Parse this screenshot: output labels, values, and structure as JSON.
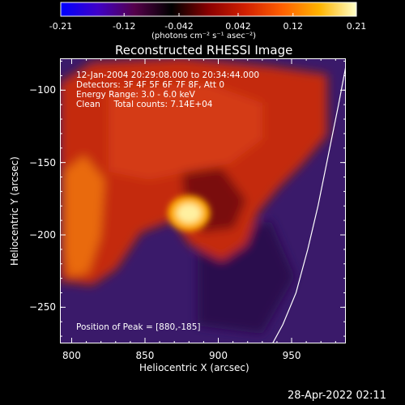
{
  "colorbar": {
    "ticks": [
      "-0.21",
      "-0.12",
      "-0.042",
      "0.042",
      "0.12",
      "0.21"
    ],
    "tick_values": [
      -0.21,
      -0.12,
      -0.042,
      0.042,
      0.12,
      0.21
    ],
    "unit_text": "(photons cm⁻² s⁻¹ asec⁻²)",
    "colors": [
      "#0000ff",
      "#4000c8",
      "#55004a",
      "#000000",
      "#8a0000",
      "#d22000",
      "#ff6000",
      "#ffb400",
      "#ffffc8"
    ]
  },
  "chart_data": {
    "type": "heatmap",
    "title": "Reconstructed RHESSI Image",
    "xlabel": "Heliocentric X (arcsec)",
    "ylabel": "Heliocentric Y (arcsec)",
    "xlim": [
      792,
      987
    ],
    "ylim": [
      -275,
      -78
    ],
    "xticks": [
      800,
      850,
      900,
      950
    ],
    "yticks": [
      -100,
      -150,
      -200,
      -250
    ],
    "info_lines": [
      "12-Jan-2004 20:29:08.000 to 20:34:44.000",
      "Detectors: 3F 4F 5F 6F 7F 8F, Att 0",
      "Energy Range: 3.0 - 6.0 keV",
      "Clean     Total counts: 7.14E+04"
    ],
    "peak_text": "Position of Peak = [880,-185]",
    "peak": [
      880,
      -185
    ],
    "peak_value": 0.21,
    "limb_curve": [
      [
        988,
        -78
      ],
      [
        982,
        -110
      ],
      [
        975,
        -145
      ],
      [
        968,
        -180
      ],
      [
        961,
        -210
      ],
      [
        953,
        -240
      ],
      [
        944,
        -262
      ],
      [
        937,
        -275
      ]
    ]
  },
  "timestamp": "28-Apr-2022 02:11"
}
